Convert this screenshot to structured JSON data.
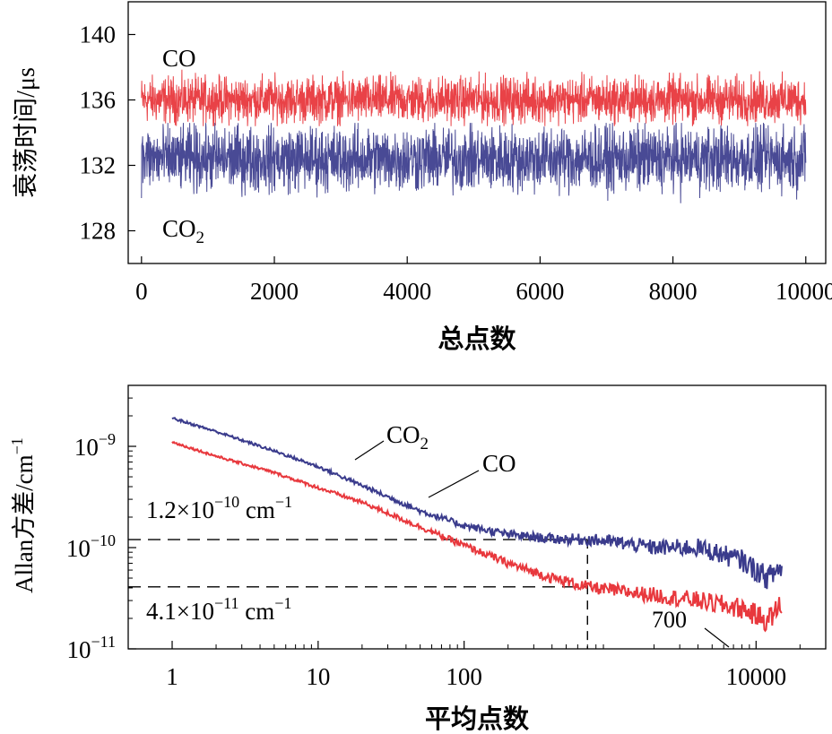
{
  "chart_data": [
    {
      "type": "line",
      "xlabel": "总点数",
      "ylabel": "衰荡时间/μs",
      "xlim": [
        -200,
        10300
      ],
      "ylim": [
        126.0,
        142.0
      ],
      "xticks": [
        0,
        2000,
        4000,
        6000,
        8000,
        10000
      ],
      "xtick_labels": [
        "0",
        "2000",
        "4000",
        "6000",
        "8000",
        "10000"
      ],
      "yticks": [
        128,
        132,
        136,
        140
      ],
      "ytick_labels": [
        "128",
        "132",
        "136",
        "140"
      ],
      "grid": false,
      "series": [
        {
          "name": "CO",
          "color": "#e8383d",
          "x_range": [
            0,
            10000
          ],
          "mean": 136.0,
          "amplitude": 1.2,
          "min": 134.4,
          "max": 137.9
        },
        {
          "name": "CO2",
          "color": "#3a3b8c",
          "x_range": [
            0,
            10000
          ],
          "mean": 132.4,
          "amplitude": 1.7,
          "min": 128.6,
          "max": 134.6
        }
      ],
      "annotations": [
        {
          "text": "CO",
          "x": 0,
          "y": 138.0
        },
        {
          "text": "CO",
          "sub": "2",
          "x": 0,
          "y": 128.2
        }
      ]
    },
    {
      "type": "line",
      "xlabel": "平均点数",
      "ylabel": "Allan方差/cm",
      "ylabel_sup": "−1",
      "xscale": "log",
      "yscale": "log",
      "xlim": [
        0.5,
        30000
      ],
      "ylim": [
        1e-11,
        4e-09
      ],
      "xticks": [
        1,
        10,
        100,
        10000
      ],
      "xtick_labels": [
        "1",
        "10",
        "100",
        "10000"
      ],
      "yticks": [
        1e-11,
        1e-10,
        1e-09
      ],
      "ytick_labels": [
        {
          "base": "10",
          "exp": "−11"
        },
        {
          "base": "10",
          "exp": "−10"
        },
        {
          "base": "10",
          "exp": "−9"
        }
      ],
      "grid": false,
      "series": [
        {
          "name": "CO2",
          "color": "#3a3b8c",
          "x": [
            1,
            2,
            5,
            10,
            20,
            50,
            100,
            200,
            400,
            700,
            1000,
            2000,
            4000,
            8000,
            12000,
            15000
          ],
          "y": [
            1.9e-09,
            1.4e-09,
            9e-10,
            6.3e-10,
            4.1e-10,
            2.3e-10,
            1.65e-10,
            1.35e-10,
            1.22e-10,
            1.2e-10,
            1.15e-10,
            1e-10,
            1e-10,
            7.5e-11,
            5e-11,
            6.5e-11
          ]
        },
        {
          "name": "CO",
          "color": "#e8383d",
          "x": [
            1,
            2,
            5,
            10,
            20,
            50,
            100,
            200,
            400,
            700,
            1000,
            2000,
            4000,
            8000,
            12000,
            15000
          ],
          "y": [
            1.1e-09,
            8e-10,
            5.5e-10,
            3.9e-10,
            2.8e-10,
            1.6e-10,
            1.05e-10,
            7e-11,
            5e-11,
            4.1e-11,
            3.8e-11,
            3.4e-11,
            3e-11,
            2.5e-11,
            1.9e-11,
            2.8e-11
          ]
        }
      ],
      "reference_lines": [
        {
          "y": 1.2e-10,
          "label": "1.2×10",
          "label_sup": "−10",
          "label_unit": "cm",
          "label_unit_sup": "−1"
        },
        {
          "y": 4.1e-11,
          "label": "4.1×10",
          "label_sup": "−11",
          "label_unit": "cm",
          "label_unit_sup": "−1"
        }
      ],
      "vertical_reference": {
        "x": 700,
        "label": "700"
      },
      "annotations": [
        {
          "text": "CO",
          "sub": "2",
          "series": "CO2"
        },
        {
          "text": "CO",
          "series": "CO"
        }
      ]
    }
  ]
}
